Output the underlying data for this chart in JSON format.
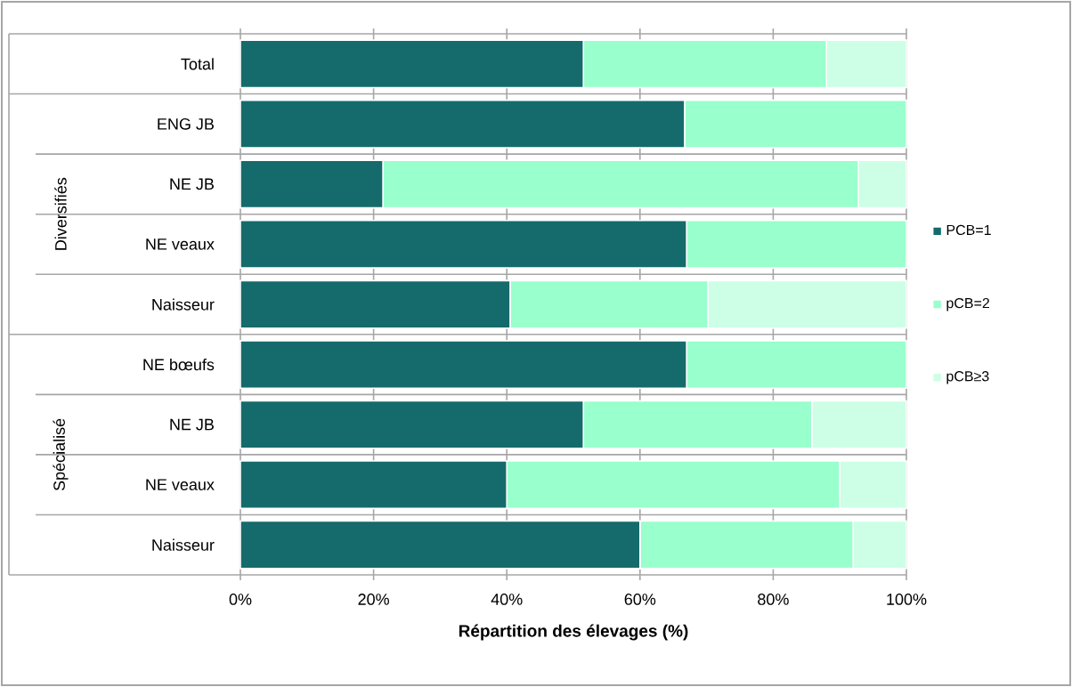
{
  "chart_data": {
    "type": "bar",
    "orientation": "horizontal",
    "stacked": true,
    "xlabel": "Répartition des élevages (%)",
    "categories": [
      "Total",
      "ENG JB",
      "NE JB",
      "NE veaux",
      "Naisseur",
      "NE bœufs",
      "NE JB",
      "NE veaux",
      "Naisseur"
    ],
    "series": [
      {
        "name": "PCB=1",
        "color": "#156b6b",
        "values": [
          51.5,
          66.7,
          21.4,
          67,
          40.5,
          67,
          51.5,
          40,
          60
        ]
      },
      {
        "name": "pCB=2",
        "color": "#99ffcc",
        "values": [
          36.5,
          33.3,
          71.4,
          33,
          29.7,
          33,
          34.3,
          50,
          32
        ]
      },
      {
        "name": "pCB≥3",
        "color": "#ccffe6",
        "values": [
          12,
          0,
          7.2,
          0,
          29.8,
          0,
          14.2,
          10,
          8
        ]
      }
    ],
    "annotations": [
      "Diversifiés",
      "Spécialisé"
    ],
    "xlim": [
      0,
      100
    ],
    "xticks": [
      {
        "value": 0,
        "label": "0%"
      },
      {
        "value": 20,
        "label": "20%"
      },
      {
        "value": 40,
        "label": "40%"
      },
      {
        "value": 60,
        "label": "60%"
      },
      {
        "value": 80,
        "label": "80%"
      },
      {
        "value": 100,
        "label": "100%"
      }
    ],
    "grid": "x",
    "legend": "right"
  }
}
